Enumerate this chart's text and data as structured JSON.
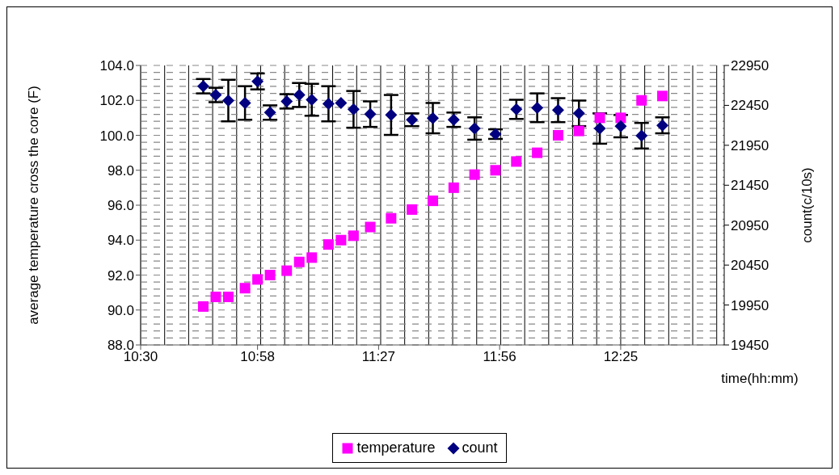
{
  "chart_data": {
    "type": "scatter",
    "xlabel": "time(hh:mm)",
    "ylabel": "average temperature cross the core (F)",
    "y2label": "count(c/10s)",
    "x": [
      10.75,
      10.8,
      10.85,
      10.9167,
      10.9667,
      11.0167,
      11.0833,
      11.1333,
      11.1833,
      11.25,
      11.3,
      11.35,
      11.4167,
      11.5,
      11.5833,
      11.6667,
      11.75,
      11.8333,
      11.9167,
      12,
      12.0833,
      12.1667,
      12.25,
      12.3333,
      12.4167,
      12.5,
      12.5833
    ],
    "series": [
      {
        "name": "temperature",
        "color": "#ff00ff",
        "marker": "square",
        "values": [
          90.2,
          90.75,
          90.75,
          91.25,
          91.75,
          92.0,
          92.25,
          92.75,
          93.0,
          93.75,
          94.0,
          94.25,
          94.75,
          95.25,
          95.75,
          96.25,
          97.0,
          97.75,
          98.0,
          98.5,
          99.0,
          100.0,
          100.25,
          101.0,
          101.0,
          102.0,
          102.25
        ]
      },
      {
        "name": "count",
        "color": "#000080",
        "marker": "diamond",
        "axis": "y2",
        "values": [
          22690,
          22580,
          22510,
          22480,
          22750,
          22360,
          22500,
          22580,
          22520,
          22470,
          22480,
          22400,
          22340,
          22330,
          22270,
          22290,
          22270,
          22160,
          22090,
          22400,
          22420,
          22390,
          22350,
          22160,
          22190,
          22070,
          22200
        ],
        "errors": [
          90,
          90,
          260,
          210,
          100,
          90,
          90,
          150,
          200,
          220,
          null,
          230,
          160,
          250,
          80,
          190,
          90,
          140,
          60,
          120,
          180,
          150,
          160,
          190,
          140,
          160,
          100
        ]
      }
    ],
    "xlim": [
      10.5,
      12.83
    ],
    "xticks": [
      {
        "value": 10.5,
        "label": "10:30"
      },
      {
        "value": 10.9667,
        "label": "10:58"
      },
      {
        "value": 11.45,
        "label": "11:27"
      },
      {
        "value": 11.9333,
        "label": "11:56"
      },
      {
        "value": 12.4167,
        "label": "12:25"
      }
    ],
    "ylim": [
      88,
      104
    ],
    "yticks": [
      {
        "value": 88,
        "label": "88.0"
      },
      {
        "value": 90,
        "label": "90.0"
      },
      {
        "value": 92,
        "label": "92.0"
      },
      {
        "value": 94,
        "label": "94.0"
      },
      {
        "value": 96,
        "label": "96.0"
      },
      {
        "value": 98,
        "label": "98.0"
      },
      {
        "value": 100,
        "label": "100.0"
      },
      {
        "value": 102,
        "label": "102.0"
      },
      {
        "value": 104,
        "label": "104.0"
      }
    ],
    "y2lim": [
      19450,
      22950
    ],
    "y2ticks": [
      19450,
      19950,
      20450,
      20950,
      21450,
      21950,
      22450,
      22950
    ],
    "grid": true,
    "legend": "bottom"
  }
}
